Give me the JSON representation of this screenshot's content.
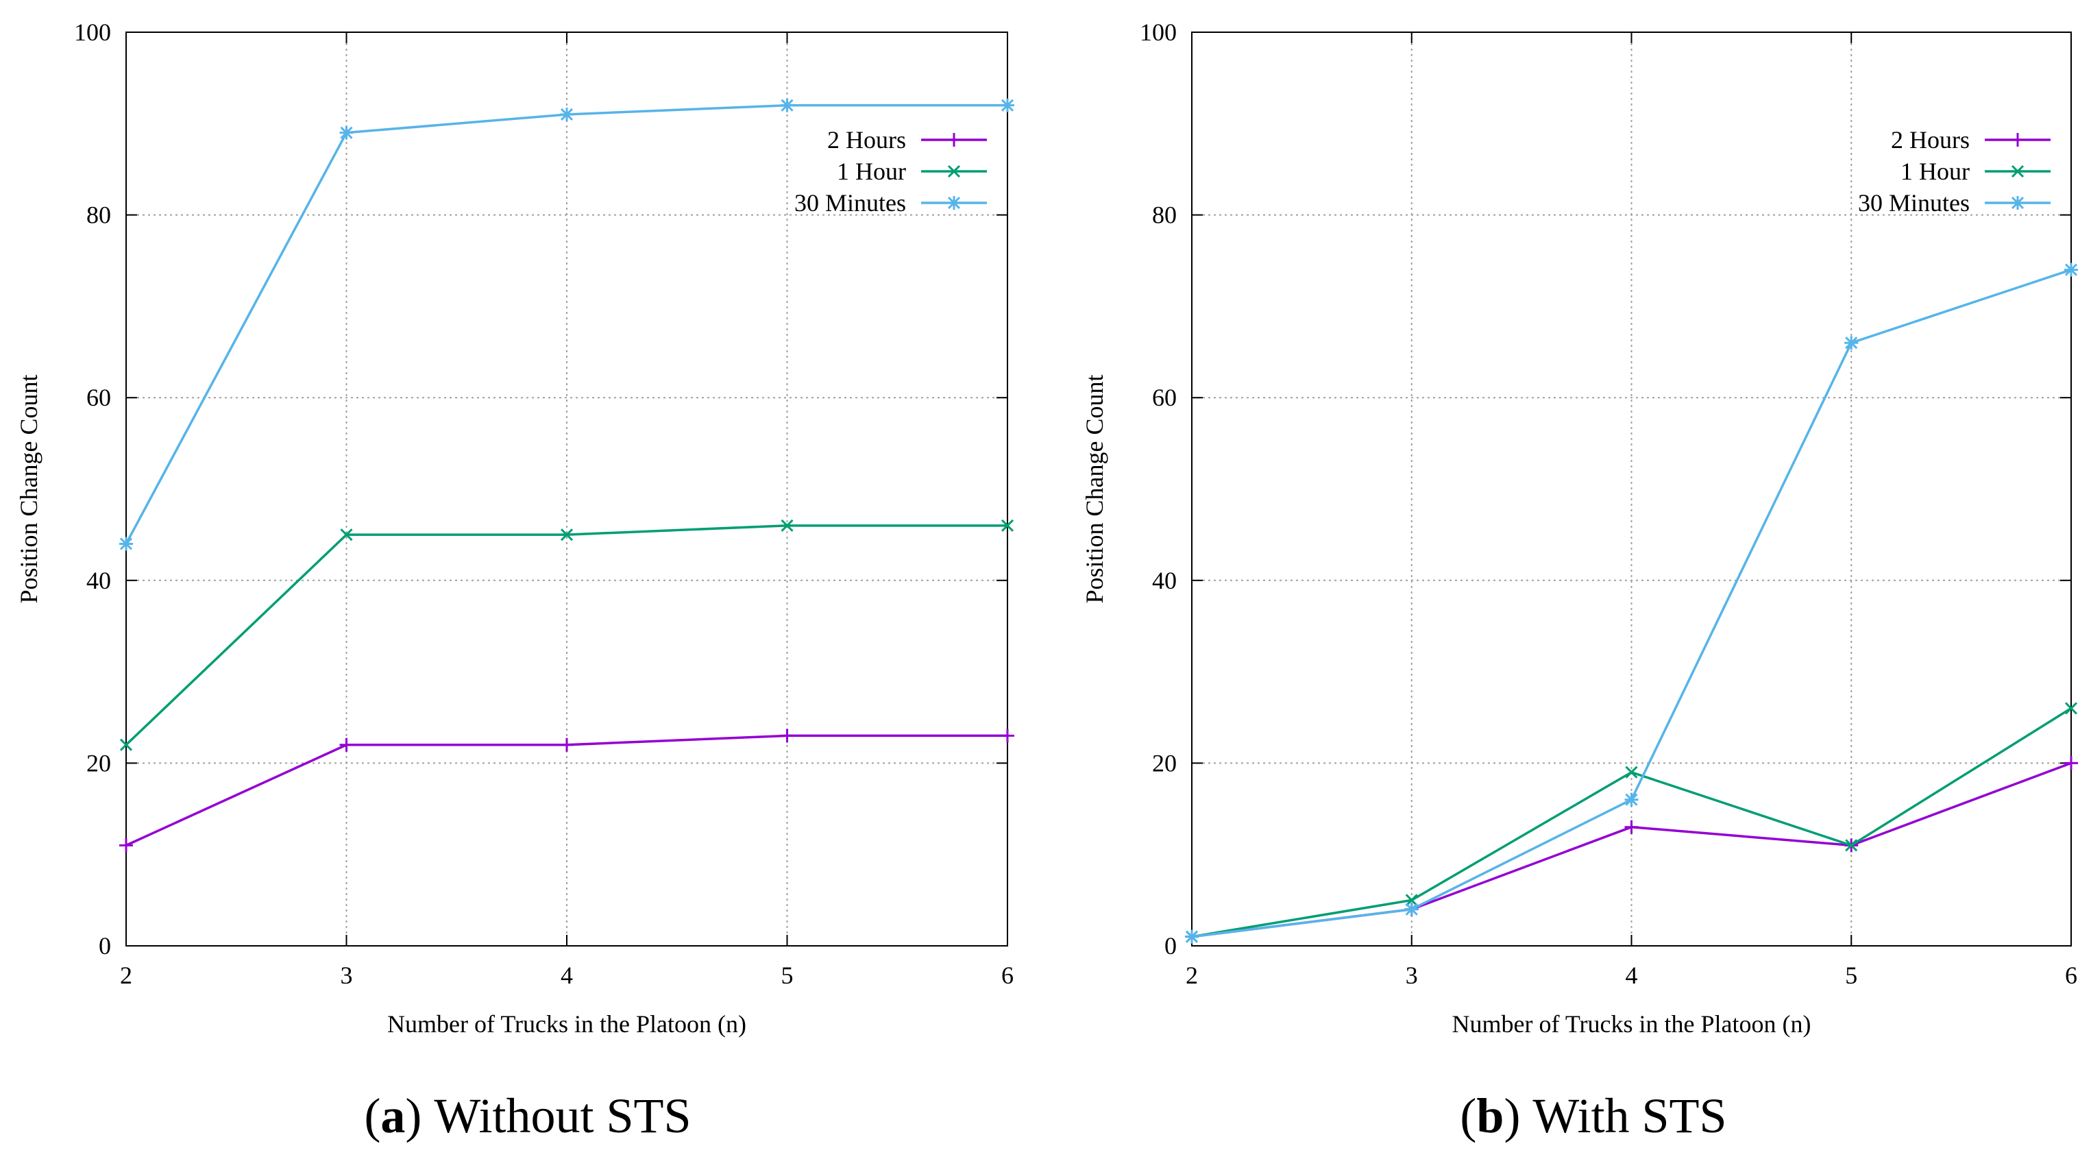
{
  "colors": {
    "two_hours": "#9400d3",
    "one_hour": "#009e73",
    "thirty_min": "#56b4e9",
    "grid": "#a0a0a0",
    "frame": "#000000"
  },
  "chart_data": [
    {
      "type": "line",
      "panel_letter": "a",
      "caption_text": " Without STS",
      "xlabel": "Number of Trucks in the Platoon (n)",
      "ylabel": "Position Change Count",
      "xlim": [
        2,
        6
      ],
      "ylim": [
        0,
        100
      ],
      "xticks": [
        "2",
        "3",
        "4",
        "5",
        "6"
      ],
      "yticks": [
        "0",
        "20",
        "40",
        "60",
        "80",
        "100"
      ],
      "grid": true,
      "legend_position": "top-right",
      "x": [
        2,
        3,
        4,
        5,
        6
      ],
      "series": [
        {
          "name": "2 Hours",
          "marker": "plus",
          "color_key": "two_hours",
          "values": [
            11,
            22,
            22,
            23,
            23
          ]
        },
        {
          "name": "1 Hour",
          "marker": "cross",
          "color_key": "one_hour",
          "values": [
            22,
            45,
            45,
            46,
            46
          ]
        },
        {
          "name": "30 Minutes",
          "marker": "star",
          "color_key": "thirty_min",
          "values": [
            44,
            89,
            91,
            92,
            92
          ]
        }
      ]
    },
    {
      "type": "line",
      "panel_letter": "b",
      "caption_text": " With STS",
      "xlabel": "Number of Trucks in the Platoon (n)",
      "ylabel": "Position Change Count",
      "xlim": [
        2,
        6
      ],
      "ylim": [
        0,
        100
      ],
      "xticks": [
        "2",
        "3",
        "4",
        "5",
        "6"
      ],
      "yticks": [
        "0",
        "20",
        "40",
        "60",
        "80",
        "100"
      ],
      "grid": true,
      "legend_position": "top-right",
      "x": [
        2,
        3,
        4,
        5,
        6
      ],
      "series": [
        {
          "name": "2 Hours",
          "marker": "plus",
          "color_key": "two_hours",
          "values": [
            1,
            4,
            13,
            11,
            20
          ]
        },
        {
          "name": "1 Hour",
          "marker": "cross",
          "color_key": "one_hour",
          "values": [
            1,
            5,
            19,
            11,
            26
          ]
        },
        {
          "name": "30 Minutes",
          "marker": "star",
          "color_key": "thirty_min",
          "values": [
            1,
            4,
            16,
            66,
            74
          ]
        }
      ]
    }
  ]
}
